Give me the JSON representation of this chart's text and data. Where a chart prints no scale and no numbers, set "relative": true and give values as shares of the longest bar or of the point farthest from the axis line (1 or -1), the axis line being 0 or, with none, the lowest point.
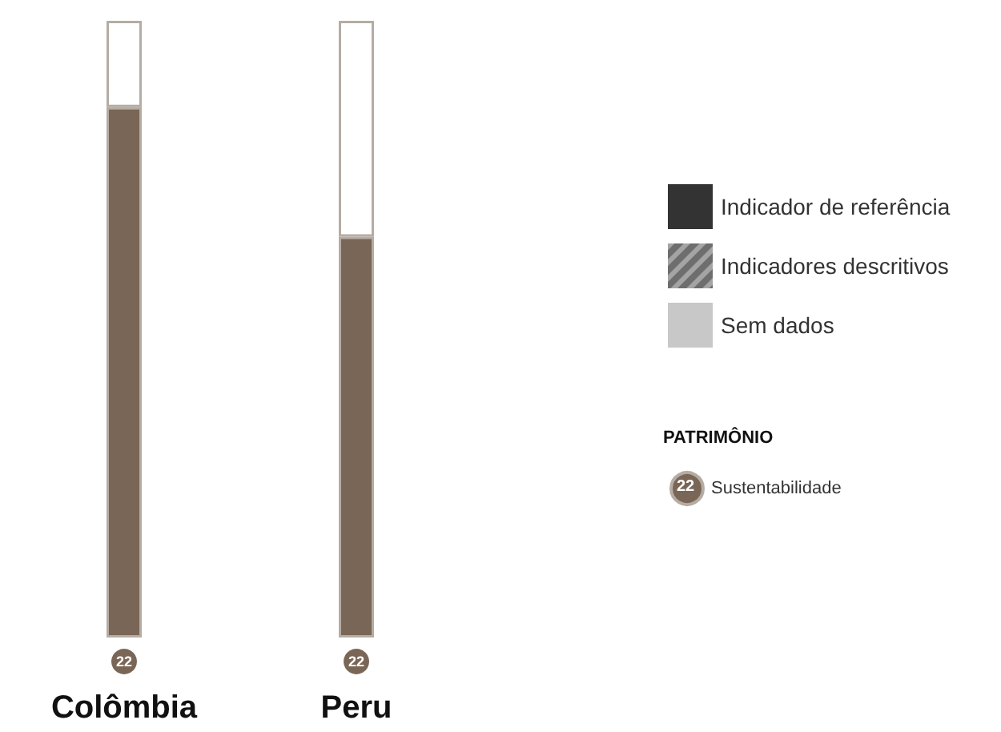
{
  "chart_data": {
    "type": "bar",
    "relative": true,
    "stacked": true,
    "legend": "right",
    "legend_title": "PATRIMÔNIO",
    "categories": [
      "Colômbia",
      "Peru"
    ],
    "series": [
      {
        "name": "Sustentabilidade",
        "color": "#7a6656",
        "values": [
          0.86,
          0.65
        ]
      },
      {
        "color": "#ffffff",
        "values": [
          0.14,
          0.35
        ]
      },
      {
        "name": "Indicador de referência",
        "color": "#333333",
        "values": [
          null,
          null
        ]
      },
      {
        "name": "Indicadores descritivos",
        "color": "#6e6e6e",
        "values": [
          null,
          null
        ]
      },
      {
        "name": "Sem dados",
        "color": "#c8c8c8",
        "values": [
          null,
          null
        ]
      }
    ],
    "annotations": [
      {
        "text": "22",
        "x": "Colômbia",
        "y": 0
      },
      {
        "text": "22",
        "x": "Peru",
        "y": 0
      },
      "22"
    ]
  }
}
